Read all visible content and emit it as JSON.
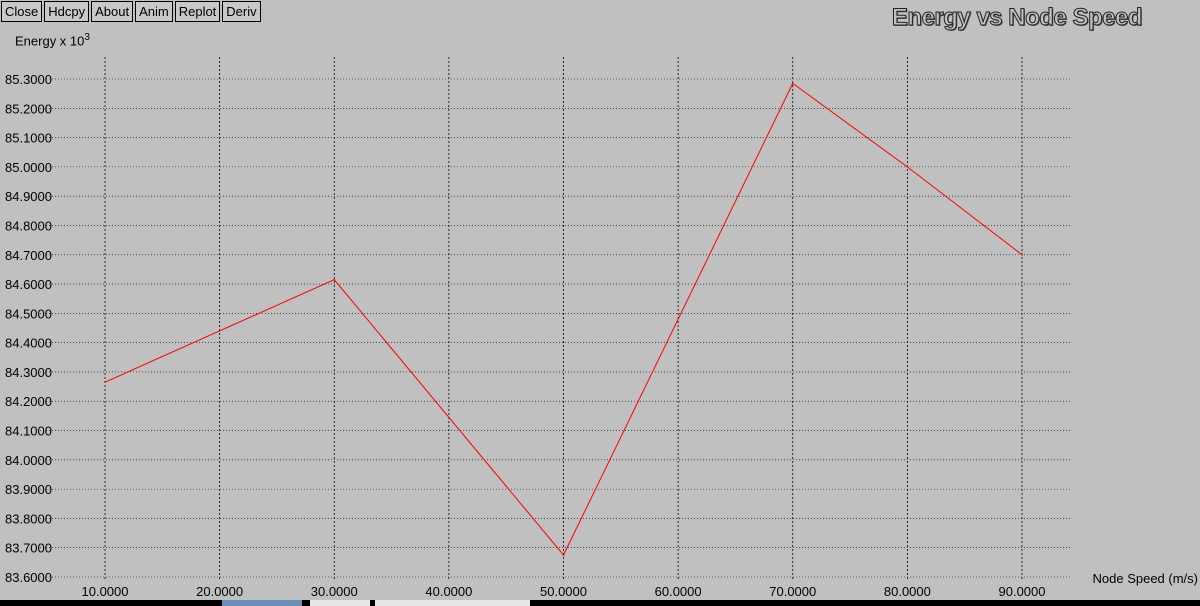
{
  "toolbar": {
    "buttons": [
      "Close",
      "Hdcpy",
      "About",
      "Anim",
      "Replot",
      "Deriv"
    ]
  },
  "chart_data": {
    "type": "line",
    "title": "Energy vs Node Speed",
    "ylabel": "Energy x 10",
    "ylabel_exp": "3",
    "xlabel": "Node Speed (m/s)",
    "x": [
      10,
      30,
      50,
      70,
      80,
      90
    ],
    "series": [
      {
        "values": [
          84.265,
          84.615,
          83.675,
          85.285,
          85.0,
          84.7
        ],
        "color": "#ff0000"
      }
    ],
    "xlim": [
      10,
      90
    ],
    "ylim": [
      83.6,
      85.3
    ],
    "xticks": [
      10,
      20,
      30,
      40,
      50,
      60,
      70,
      80,
      90
    ],
    "yticks": [
      83.6,
      83.7,
      83.8,
      83.9,
      84.0,
      84.1,
      84.2,
      84.3,
      84.4,
      84.5,
      84.6,
      84.7,
      84.8,
      84.9,
      85.0,
      85.1,
      85.2,
      85.3
    ],
    "xtick_labels": [
      "10.0000",
      "20.0000",
      "30.0000",
      "40.0000",
      "50.0000",
      "60.0000",
      "70.0000",
      "80.0000",
      "90.0000"
    ],
    "ytick_labels": [
      "83.6000",
      "83.7000",
      "83.8000",
      "83.9000",
      "84.0000",
      "84.1000",
      "84.2000",
      "84.3000",
      "84.4000",
      "84.5000",
      "84.6000",
      "84.7000",
      "84.8000",
      "84.9000",
      "85.0000",
      "85.1000",
      "85.2000",
      "85.3000"
    ],
    "grid": true,
    "grid_color": "#000000",
    "background": "#c0c0c0"
  }
}
